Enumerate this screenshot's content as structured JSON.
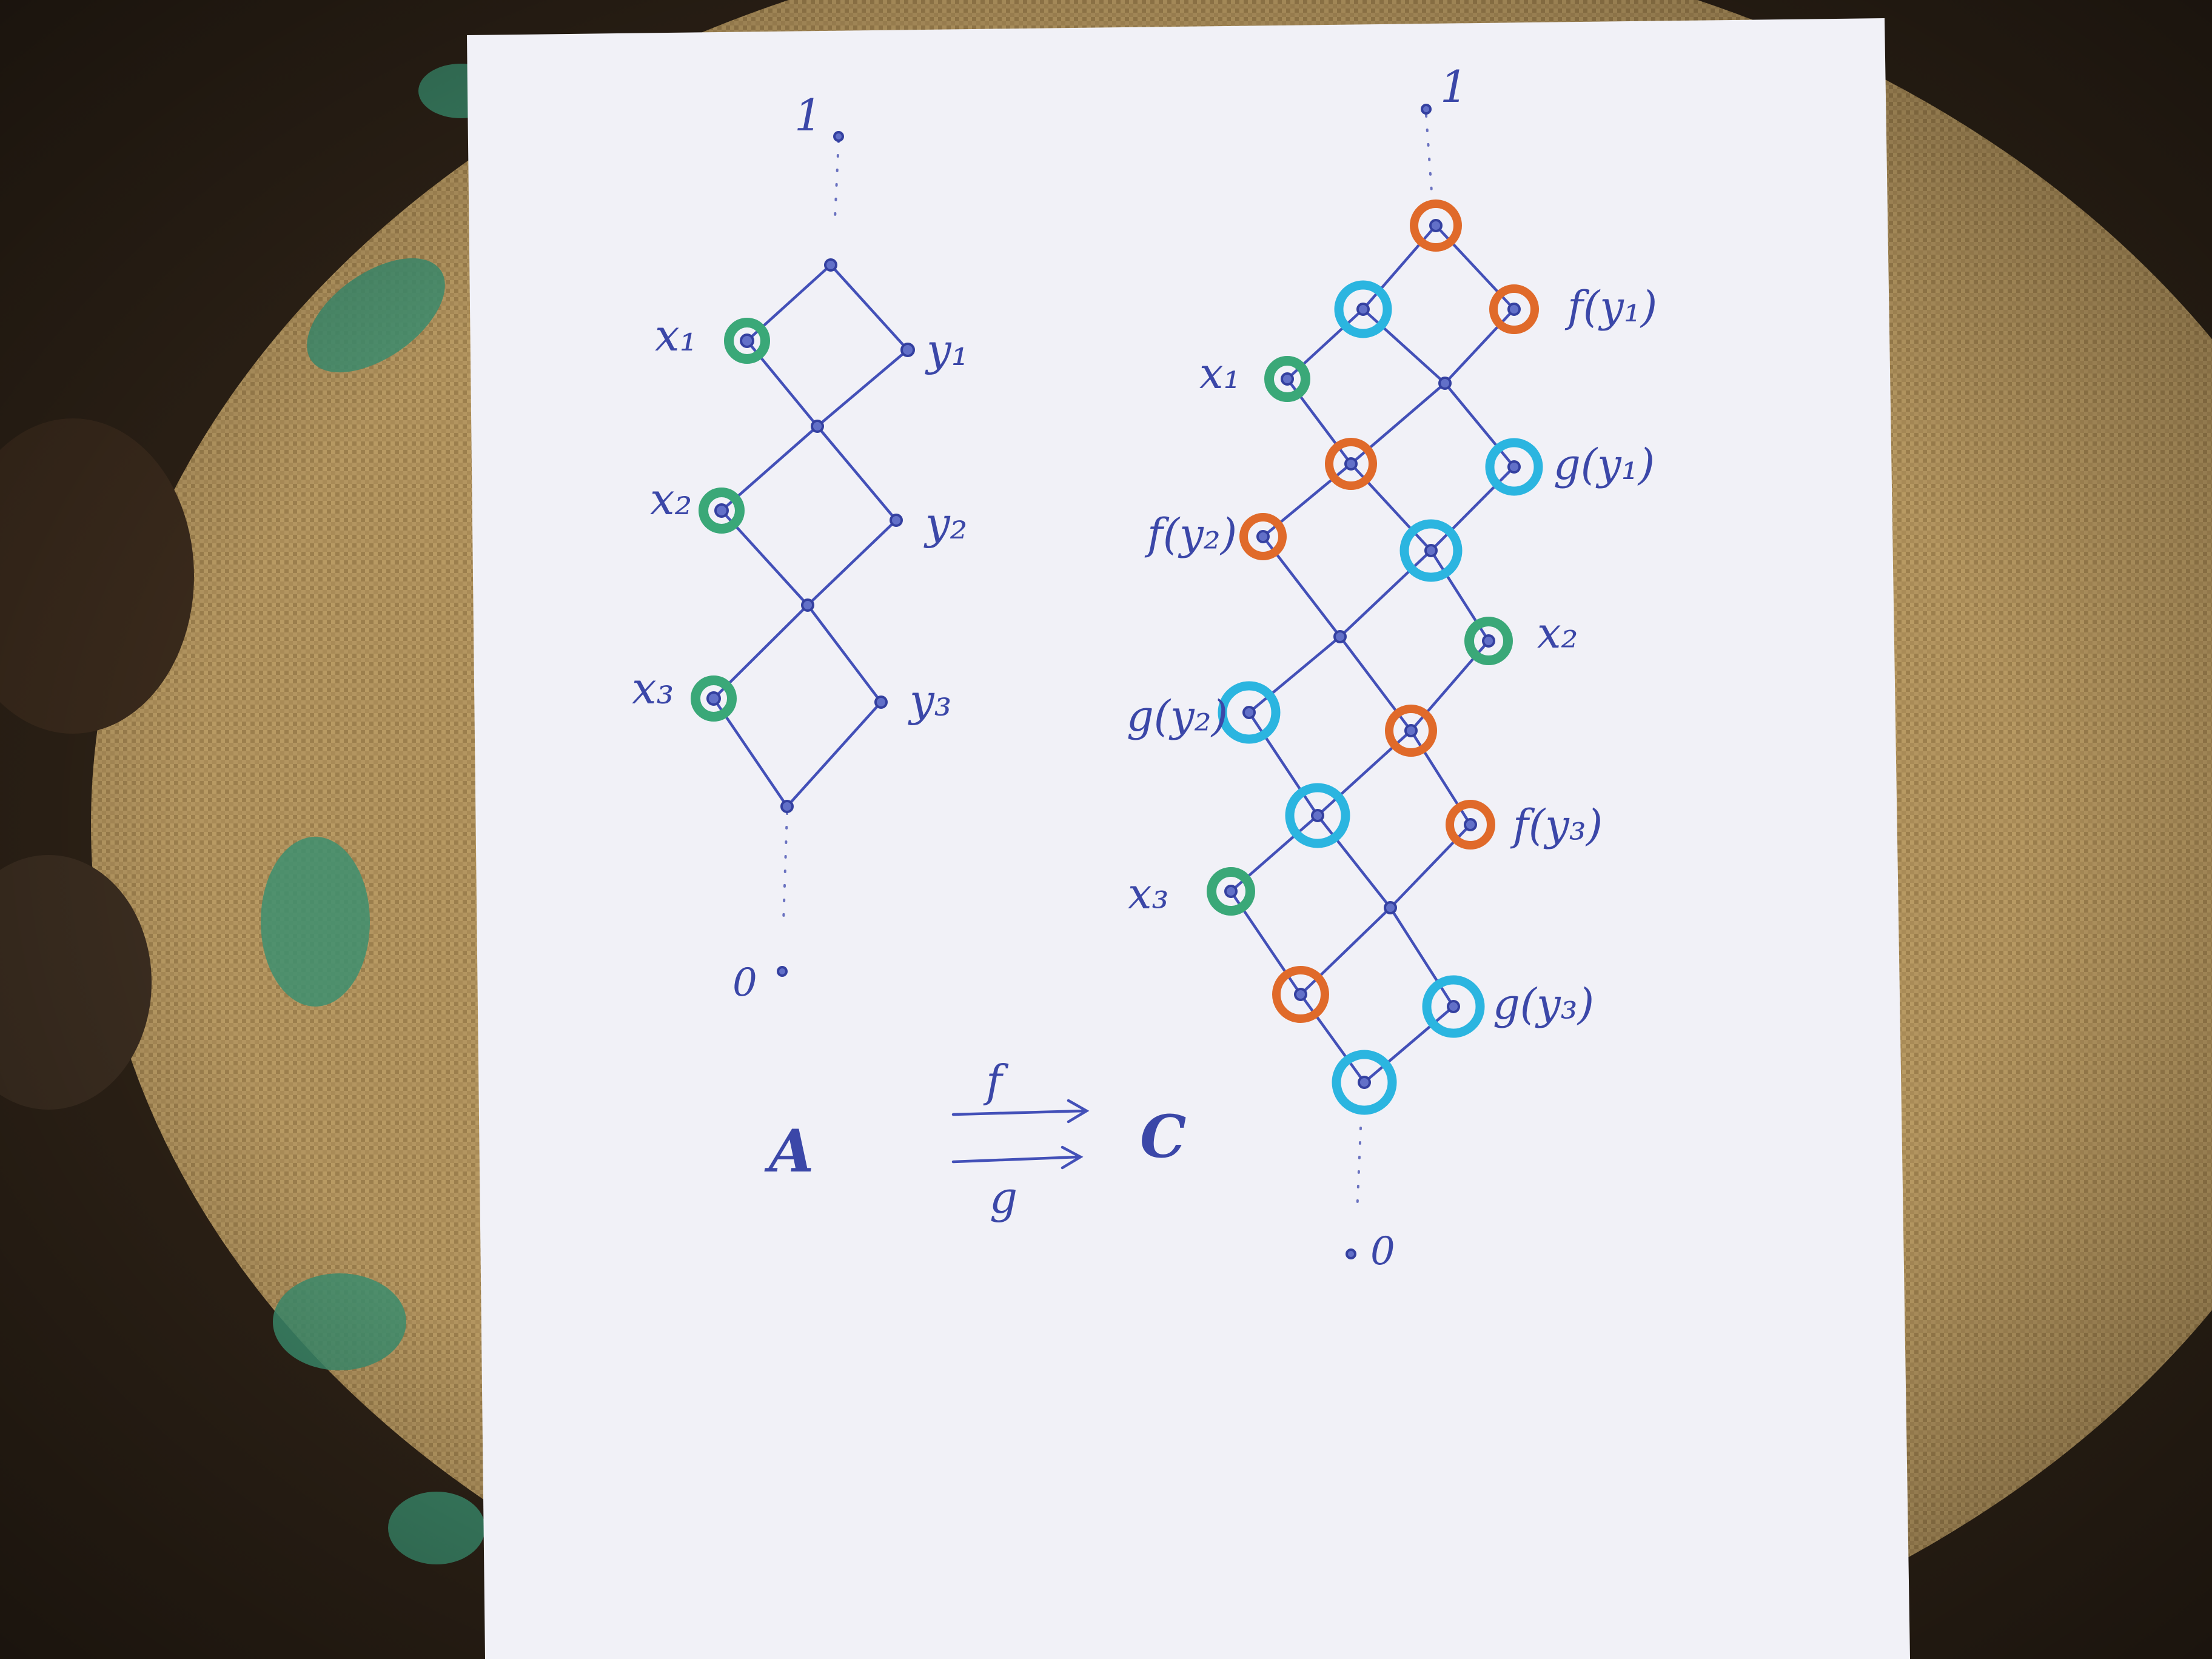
{
  "colors": {
    "ink": "#3b47a8",
    "green_ring": "#3aa878",
    "orange_ring": "#e06a2a",
    "cyan_ring": "#2bb5e0",
    "paper": "#f2f2f8",
    "cloth": "#a88a55"
  },
  "left_lattice": {
    "top_label": "1",
    "bottom_label": "0",
    "labels": {
      "x1": "x₁",
      "y1": "y₁",
      "x2": "x₂",
      "y2": "y₂",
      "x3": "x₃",
      "y3": "y₃"
    }
  },
  "right_lattice": {
    "top_label": "1",
    "bottom_label": "0",
    "labels": {
      "f_y1": "f(y₁)",
      "x1": "x₁",
      "g_y1": "g(y₁)",
      "f_y2": "f(y₂)",
      "x2": "x₂",
      "g_y2": "g(y₂)",
      "f_y3": "f(y₃)",
      "x3": "x₃",
      "g_y3": "g(y₃)"
    }
  },
  "maps": {
    "domain": "A",
    "codomain": "C",
    "upper_arrow": "f",
    "lower_arrow": "g"
  }
}
